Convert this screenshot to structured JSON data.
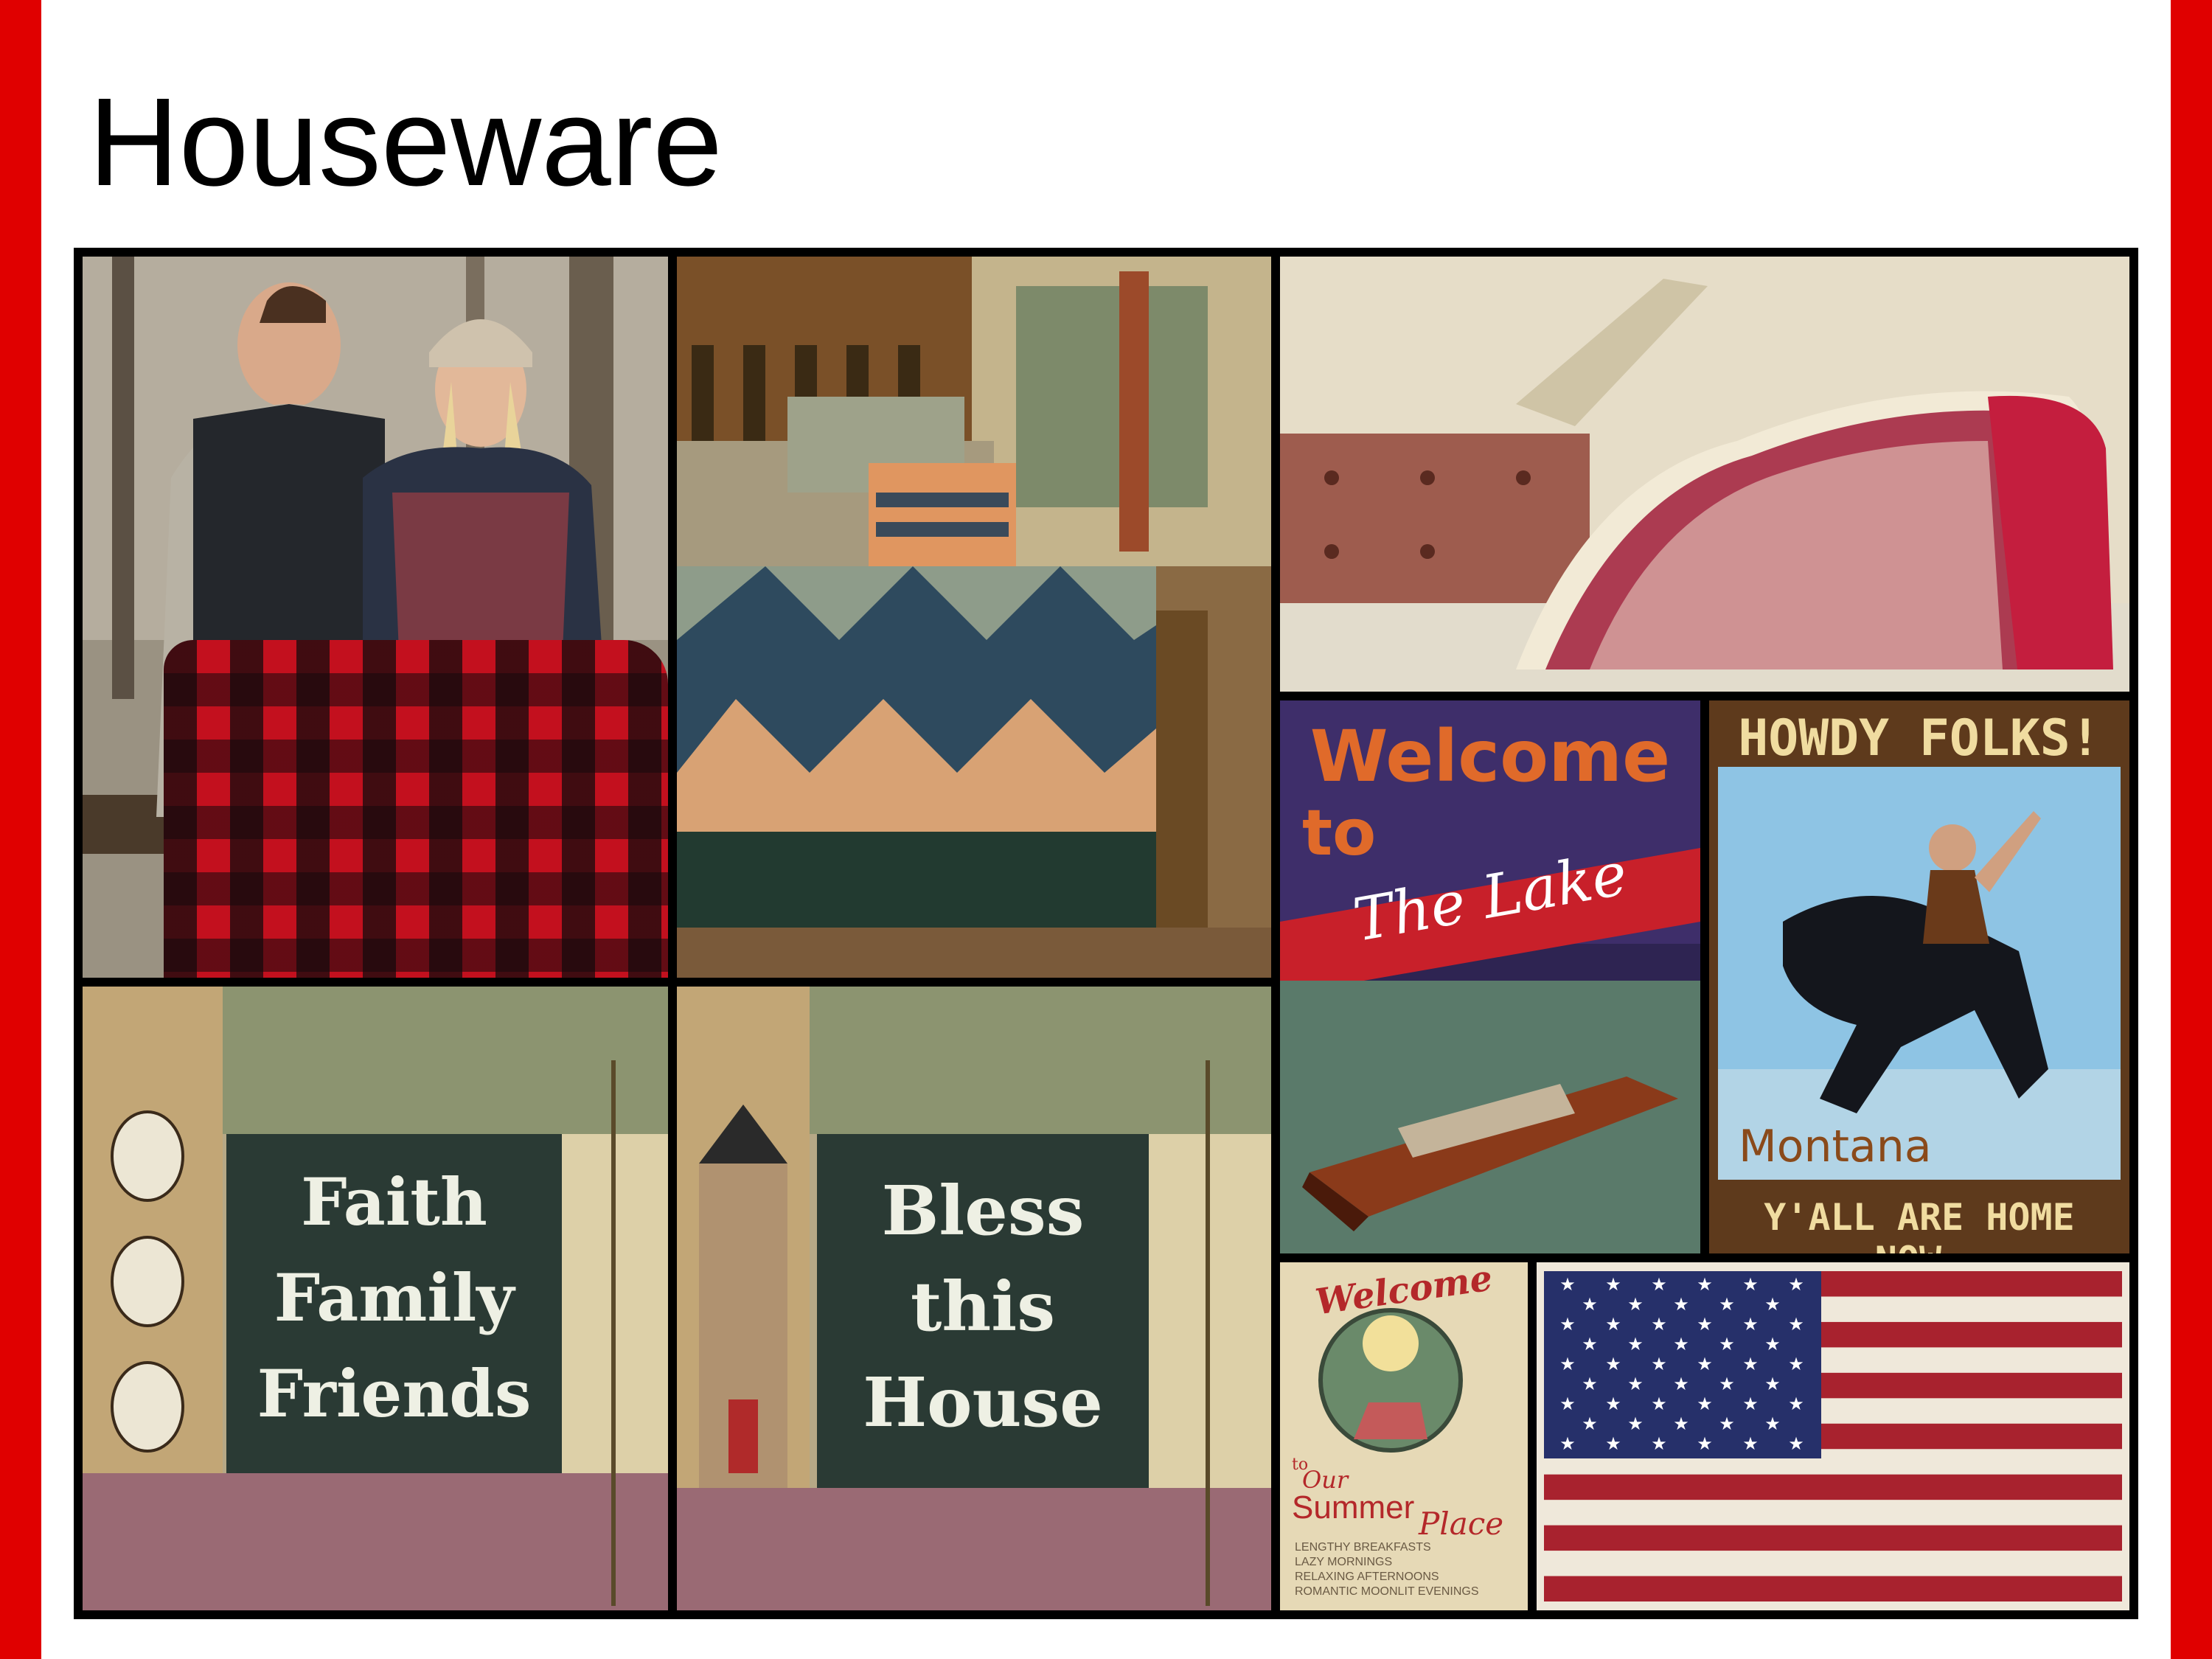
{
  "slide": {
    "title": "Houseware",
    "accent_color": "#e00000"
  },
  "images": {
    "couple_plaid_blanket": {
      "icon": "photo"
    },
    "rustic_bed": {
      "icon": "photo"
    },
    "red_throw_blanket": {
      "icon": "photo"
    },
    "lake_sign": {
      "line1": "Welcome",
      "line2": "to",
      "line3": "The Lake"
    },
    "montana_sign": {
      "top": "HOWDY FOLKS!",
      "place": "Montana",
      "bottom": "Y'ALL ARE HOME NOW."
    },
    "faith_mat": {
      "line1": "Faith",
      "line2": "Family",
      "line3": "Friends"
    },
    "bless_mat": {
      "line1": "Bless",
      "line2": "this",
      "line3": "House"
    },
    "summer_sign": {
      "line1": "Welcome",
      "line2": "to",
      "line3": "Our",
      "line4": "Summer",
      "line5": "Place",
      "detail1": "LENGTHY BREAKFASTS",
      "detail2": "LAZY MORNINGS",
      "detail3": "RELAXING AFTERNOONS",
      "detail4": "ROMANTIC MOONLIT EVENINGS"
    },
    "flag": {
      "icon": "american-flag"
    }
  }
}
